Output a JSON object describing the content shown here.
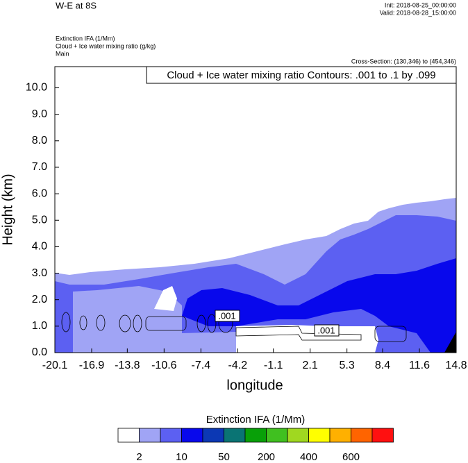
{
  "chart_data": {
    "type": "contour",
    "title": "W-E at 8S",
    "init": "Init: 2018-08-25_00:00:00",
    "valid": "Valid: 2018-08-28_15:00:00",
    "subtitles": [
      "Extinction IFA   (1/Mm)",
      "Cloud + Ice water mixing ratio   (g/kg)",
      "Main"
    ],
    "cross_section": "Cross-Section: (130,346) to (454,346)",
    "contour_info": "Cloud + Ice water mixing ratio Contours: .001 to .1 by .099",
    "contour_labels": [
      ".001",
      ".001"
    ],
    "x_label": "longitude",
    "y_label": "Height (km)",
    "xlim": [
      -20.1,
      14.8
    ],
    "xticks": [
      -20.1,
      -16.9,
      -13.8,
      -10.6,
      -7.4,
      -4.2,
      -1.1,
      2.1,
      5.3,
      8.4,
      11.6,
      14.8
    ],
    "ylim": [
      0,
      10.8
    ],
    "yticks": [
      {
        "value": 0,
        "label": "0.0"
      },
      {
        "value": 1,
        "label": "1.0"
      },
      {
        "value": 2,
        "label": "2.0"
      },
      {
        "value": 3,
        "label": "3.0"
      },
      {
        "value": 4,
        "label": "4.0"
      },
      {
        "value": 5,
        "label": "5.0"
      },
      {
        "value": 6,
        "label": "6.0"
      },
      {
        "value": 7,
        "label": "7.0"
      },
      {
        "value": 8,
        "label": "8.0"
      },
      {
        "value": 9,
        "label": "9.0"
      },
      {
        "value": 10,
        "label": "10.0"
      }
    ],
    "colorbar": {
      "title": "Extinction IFA  (1/Mm)",
      "colors": [
        "#ffffff",
        "#a0a4f5",
        "#5c60f2",
        "#0808ec",
        "#0c38b4",
        "#0a7474",
        "#08a008",
        "#40c020",
        "#a0d820",
        "#ffff00",
        "#ffb000",
        "#ff6400",
        "#ff1010"
      ],
      "labels": [
        2,
        10,
        50,
        200,
        400,
        600
      ]
    }
  }
}
